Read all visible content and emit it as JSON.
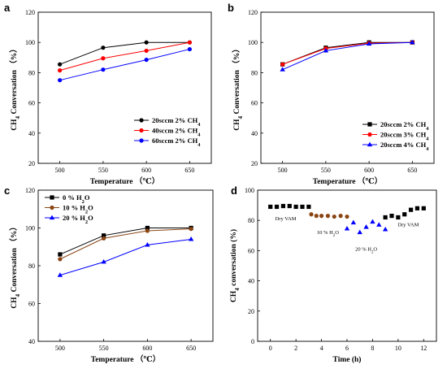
{
  "chart_data": [
    {
      "panel": "a",
      "type": "line",
      "xlabel": "Temperature （℃）",
      "ylabel": "CH4 Conversation （%）",
      "x": [
        500,
        550,
        600,
        650
      ],
      "xlim": [
        475,
        675
      ],
      "ylim": [
        20,
        120
      ],
      "xticks": [
        500,
        550,
        600,
        650
      ],
      "yticks": [
        20,
        40,
        60,
        80,
        100,
        120
      ],
      "legend_position": "bottom-right",
      "series": [
        {
          "name": "20sccm 2% CH4",
          "color": "#000000",
          "marker": "circle",
          "values": [
            85.5,
            96.5,
            100,
            100
          ]
        },
        {
          "name": "40sccm 2% CH4",
          "color": "#ff0000",
          "marker": "circle",
          "values": [
            81.5,
            89.5,
            94.5,
            100
          ]
        },
        {
          "name": "60sccm 2% CH4",
          "color": "#0000ff",
          "marker": "circle",
          "values": [
            75,
            82,
            88.5,
            95.5
          ]
        }
      ]
    },
    {
      "panel": "b",
      "type": "line",
      "xlabel": "Temperature （℃）",
      "ylabel": "CH4 Conversation （%）",
      "x": [
        500,
        550,
        600,
        650
      ],
      "xlim": [
        475,
        675
      ],
      "ylim": [
        20,
        120
      ],
      "xticks": [
        500,
        550,
        600,
        650
      ],
      "yticks": [
        20,
        40,
        60,
        80,
        100,
        120
      ],
      "legend_position": "bottom-right",
      "series": [
        {
          "name": "20sccm 2% CH4",
          "color": "#000000",
          "marker": "square",
          "values": [
            85.5,
            96.5,
            100,
            100
          ]
        },
        {
          "name": "20sccm 3% CH4",
          "color": "#ff0000",
          "marker": "circle",
          "values": [
            85.5,
            96,
            99.5,
            100
          ]
        },
        {
          "name": "20sccm 4% CH4",
          "color": "#0000ff",
          "marker": "triangle",
          "values": [
            82,
            94.5,
            99,
            100
          ]
        }
      ]
    },
    {
      "panel": "c",
      "type": "line",
      "xlabel": "Temperature （℃）",
      "ylabel": "CH4 Conversation （%）",
      "x": [
        500,
        550,
        600,
        650
      ],
      "xlim": [
        475,
        675
      ],
      "ylim": [
        40,
        120
      ],
      "xticks": [
        500,
        550,
        600,
        650
      ],
      "yticks": [
        40,
        60,
        80,
        100,
        120
      ],
      "legend_position": "top-left",
      "series": [
        {
          "name": "0 % H2O",
          "color": "#000000",
          "marker": "square",
          "values": [
            86,
            96,
            100,
            100
          ]
        },
        {
          "name": "10 % H2O",
          "color": "#8b4513",
          "marker": "circle",
          "values": [
            83.5,
            94.5,
            98.5,
            99.5
          ]
        },
        {
          "name": "20 % H2O",
          "color": "#0000ff",
          "marker": "triangle",
          "values": [
            75,
            82,
            91,
            94
          ]
        }
      ]
    },
    {
      "panel": "d",
      "type": "scatter",
      "xlabel": "Time (h)",
      "ylabel": "CH4 conversation (%)",
      "xlim": [
        -1,
        13
      ],
      "ylim": [
        0,
        100
      ],
      "xticks": [
        0,
        2,
        4,
        6,
        8,
        10,
        12
      ],
      "yticks": [
        0,
        20,
        40,
        60,
        80,
        100
      ],
      "annotations": [
        {
          "text": "Dry VAM",
          "x": 1.2,
          "y": 80
        },
        {
          "text": "10 % H2O",
          "x": 4.5,
          "y": 71
        },
        {
          "text": "20 % H2O",
          "x": 7.5,
          "y": 60
        },
        {
          "text": "Dry VAM",
          "x": 10.8,
          "y": 76
        }
      ],
      "series": [
        {
          "name": "Dry VAM",
          "color": "#000000",
          "marker": "square",
          "x": [
            0,
            0.5,
            1,
            1.5,
            2,
            2.5,
            3
          ],
          "values": [
            89,
            89,
            89.5,
            89.5,
            89,
            89,
            89
          ]
        },
        {
          "name": "10 % H2O",
          "color": "#8b4513",
          "marker": "circle",
          "x": [
            3.2,
            3.6,
            4,
            4.5,
            5,
            5.5,
            6
          ],
          "values": [
            84,
            83,
            83,
            83,
            82.5,
            83,
            82.5
          ]
        },
        {
          "name": "20 % H2O",
          "color": "#0000ff",
          "marker": "triangle",
          "x": [
            6,
            6.5,
            7,
            7.5,
            8,
            8.5,
            9
          ],
          "values": [
            74.5,
            78.5,
            72,
            75.5,
            79,
            77,
            74
          ]
        },
        {
          "name": "Dry VAM 2",
          "color": "#000000",
          "marker": "square",
          "x": [
            9,
            9.5,
            10,
            10.5,
            11,
            11.5,
            12
          ],
          "values": [
            82,
            83,
            82,
            84,
            87,
            88,
            88
          ]
        }
      ]
    }
  ]
}
